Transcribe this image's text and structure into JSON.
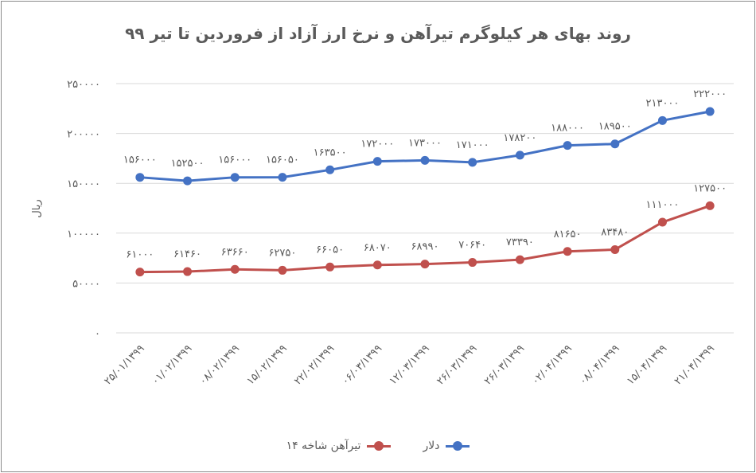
{
  "chart_data": {
    "type": "line",
    "title": "روند بهای هر کیلوگرم تیرآهن و نرخ ارز آزاد از فروردین تا تیر ۹۹",
    "ylabel": "ریال",
    "ylim": [
      0,
      250000
    ],
    "yticks": [
      {
        "value": 0,
        "label": "۰"
      },
      {
        "value": 50000,
        "label": "۵۰۰۰۰"
      },
      {
        "value": 100000,
        "label": "۱۰۰۰۰۰"
      },
      {
        "value": 150000,
        "label": "۱۵۰۰۰۰"
      },
      {
        "value": 200000,
        "label": "۲۰۰۰۰۰"
      },
      {
        "value": 250000,
        "label": "۲۵۰۰۰۰"
      }
    ],
    "grid": true,
    "legend_position": "bottom",
    "categories": [
      "۲۵/۰۱/۱۳۹۹",
      "۰۱/۰۲/۱۳۹۹",
      "۰۸/۰۲/۱۳۹۹",
      "۱۵/۰۲/۱۳۹۹",
      "۲۲/۰۲/۱۳۹۹",
      "۰۶/۰۳/۱۳۹۹",
      "۱۲/۰۳/۱۳۹۹",
      "۲۶/۰۳/۱۳۹۹",
      "۲۶/۰۳/۱۳۹۹",
      "۰۲/۰۴/۱۳۹۹",
      "۰۸/۰۴/۱۳۹۹",
      "۱۵/۰۴/۱۳۹۹",
      "۲۱/۰۴/۱۳۹۹"
    ],
    "series": [
      {
        "name": "دلار",
        "color": "#4472c4",
        "values": [
          156000,
          152500,
          156000,
          156050,
          163500,
          172000,
          173000,
          171000,
          178200,
          188000,
          189500,
          213000,
          222000
        ],
        "labels": [
          "۱۵۶۰۰۰",
          "۱۵۲۵۰۰",
          "۱۵۶۰۰۰",
          "۱۵۶۰۵۰",
          "۱۶۳۵۰۰",
          "۱۷۲۰۰۰",
          "۱۷۳۰۰۰",
          "۱۷۱۰۰۰",
          "۱۷۸۲۰۰",
          "۱۸۸۰۰۰",
          "۱۸۹۵۰۰",
          "۲۱۳۰۰۰",
          "۲۲۲۰۰۰"
        ]
      },
      {
        "name": "تیرآهن شاخه ۱۴",
        "color": "#c0504d",
        "values": [
          61000,
          61460,
          63660,
          62750,
          66050,
          68070,
          68990,
          70640,
          73390,
          81650,
          83480,
          111000,
          127500
        ],
        "labels": [
          "۶۱۰۰۰",
          "۶۱۴۶۰",
          "۶۳۶۶۰",
          "۶۲۷۵۰",
          "۶۶۰۵۰",
          "۶۸۰۷۰",
          "۶۸۹۹۰",
          "۷۰۶۴۰",
          "۷۳۳۹۰",
          "۸۱۶۵۰",
          "۸۳۴۸۰",
          "۱۱۱۰۰۰",
          "۱۲۷۵۰۰"
        ]
      }
    ]
  }
}
